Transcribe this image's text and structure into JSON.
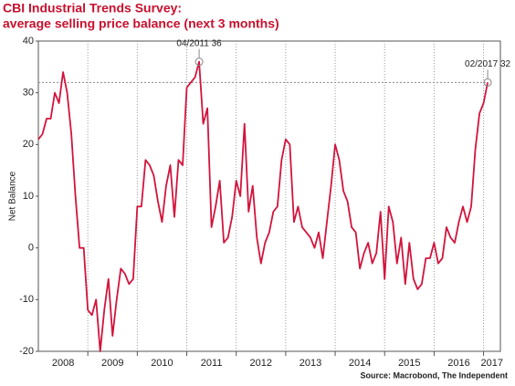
{
  "chart_data": {
    "type": "line",
    "title": "CBI Industrial Trends Survey:",
    "subtitle": "average selling price balance (next 3 months)",
    "y_label": "Net Balance",
    "source": "Source: Macrobond, The Independent",
    "xlim": [
      2008,
      2017.34
    ],
    "xticks": [
      {
        "value": 2008.5,
        "label": "2008"
      },
      {
        "value": 2009.5,
        "label": "2009"
      },
      {
        "value": 2010.5,
        "label": "2010"
      },
      {
        "value": 2011.5,
        "label": "2011"
      },
      {
        "value": 2012.5,
        "label": "2012"
      },
      {
        "value": 2013.5,
        "label": "2013"
      },
      {
        "value": 2014.5,
        "label": "2014"
      },
      {
        "value": 2015.5,
        "label": "2015"
      },
      {
        "value": 2016.5,
        "label": "2016"
      },
      {
        "value": 2017.17,
        "label": "2017"
      }
    ],
    "xgrid": [
      2009,
      2010,
      2011,
      2012,
      2013,
      2014,
      2015,
      2016,
      2017
    ],
    "ylim": [
      -20,
      40
    ],
    "yticks": [
      -20,
      -10,
      0,
      10,
      20,
      30,
      40
    ],
    "hline": 32,
    "annotations": [
      {
        "text": "04/2011 36",
        "x": 2011.25,
        "y": 36
      },
      {
        "text": "02/2017 32",
        "x": 2017.083,
        "y": 32
      }
    ],
    "x": [
      2008.0,
      2008.083,
      2008.167,
      2008.25,
      2008.333,
      2008.417,
      2008.5,
      2008.583,
      2008.667,
      2008.75,
      2008.833,
      2008.917,
      2009.0,
      2009.083,
      2009.167,
      2009.25,
      2009.333,
      2009.417,
      2009.5,
      2009.583,
      2009.667,
      2009.75,
      2009.833,
      2009.917,
      2010.0,
      2010.083,
      2010.167,
      2010.25,
      2010.333,
      2010.417,
      2010.5,
      2010.583,
      2010.667,
      2010.75,
      2010.833,
      2010.917,
      2011.0,
      2011.083,
      2011.167,
      2011.25,
      2011.333,
      2011.417,
      2011.5,
      2011.583,
      2011.667,
      2011.75,
      2011.833,
      2011.917,
      2012.0,
      2012.083,
      2012.167,
      2012.25,
      2012.333,
      2012.417,
      2012.5,
      2012.583,
      2012.667,
      2012.75,
      2012.833,
      2012.917,
      2013.0,
      2013.083,
      2013.167,
      2013.25,
      2013.333,
      2013.417,
      2013.5,
      2013.583,
      2013.667,
      2013.75,
      2013.833,
      2013.917,
      2014.0,
      2014.083,
      2014.167,
      2014.25,
      2014.333,
      2014.417,
      2014.5,
      2014.583,
      2014.667,
      2014.75,
      2014.833,
      2014.917,
      2015.0,
      2015.083,
      2015.167,
      2015.25,
      2015.333,
      2015.417,
      2015.5,
      2015.583,
      2015.667,
      2015.75,
      2015.833,
      2015.917,
      2016.0,
      2016.083,
      2016.167,
      2016.25,
      2016.333,
      2016.417,
      2016.5,
      2016.583,
      2016.667,
      2016.75,
      2016.833,
      2016.917,
      2017.0,
      2017.083
    ],
    "series": [
      {
        "name": "Net Balance",
        "color": "#d2143c",
        "values": [
          21,
          22,
          25,
          25,
          30,
          28,
          34,
          30,
          22,
          10,
          0,
          0,
          -12,
          -13,
          -10,
          -20,
          -12,
          -6,
          -17,
          -10,
          -4,
          -5,
          -7,
          -6,
          8,
          8,
          17,
          16,
          14,
          9,
          5,
          12,
          16,
          6,
          17,
          16,
          31,
          32,
          33,
          36,
          24,
          27,
          4,
          8,
          13,
          1,
          2,
          6,
          13,
          10,
          24,
          7,
          12,
          2,
          -3,
          1,
          3,
          7,
          8,
          17,
          21,
          20,
          5,
          8,
          4,
          3,
          2,
          0,
          3,
          -2,
          5,
          12,
          20,
          17,
          11,
          9,
          4,
          3,
          -4,
          -1,
          1,
          -3,
          -1,
          7,
          -6,
          8,
          5,
          -3,
          2,
          -7,
          1,
          -6,
          -8,
          -7,
          -2,
          -2,
          1,
          -3,
          -2,
          4,
          2,
          1,
          5,
          8,
          5,
          8,
          19,
          26,
          28,
          32
        ]
      }
    ]
  }
}
